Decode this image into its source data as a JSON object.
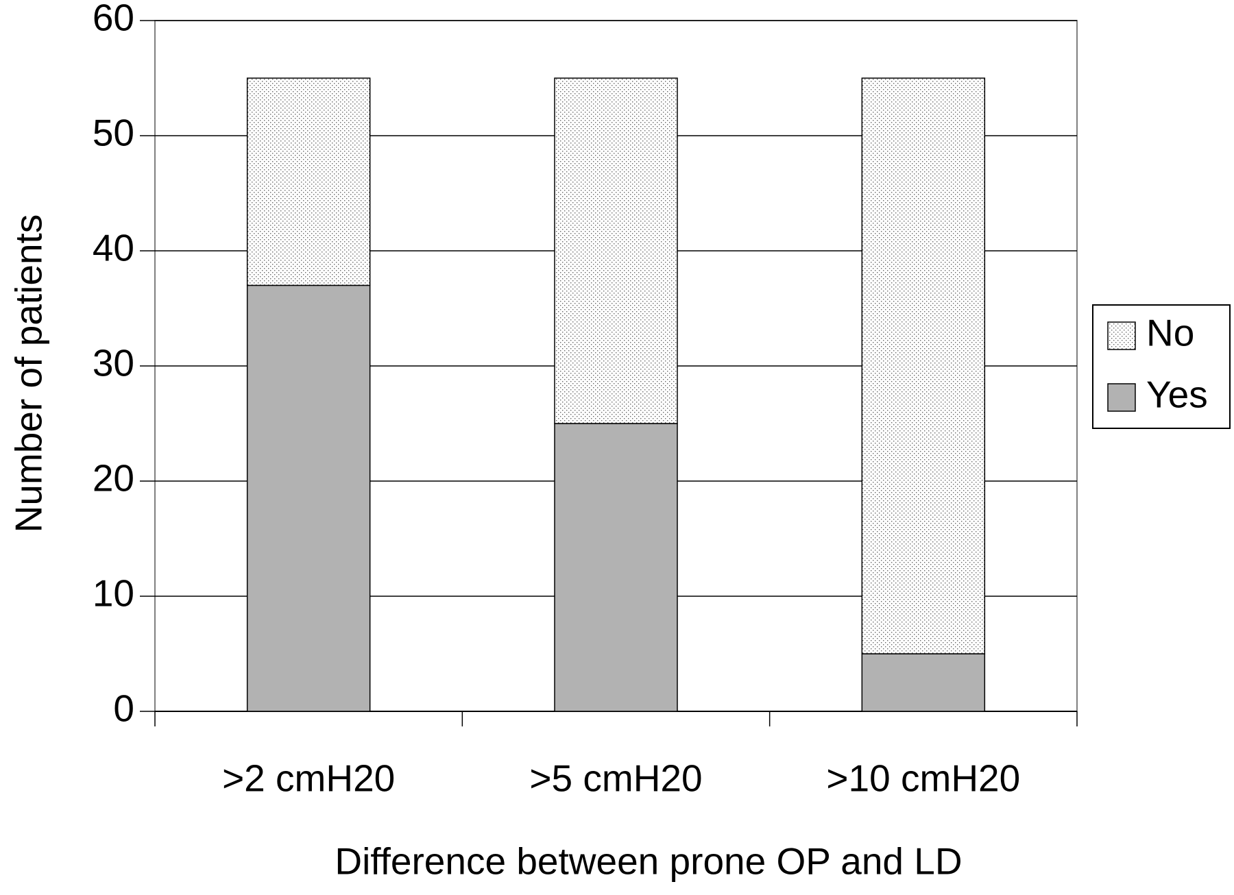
{
  "chart_data": {
    "type": "stacked-bar",
    "x_label": "Difference between prone OP and LD",
    "y_label": "Number of patients",
    "categories": [
      ">2 cmH20",
      ">5 cmH20",
      ">10 cmH20"
    ],
    "series": [
      {
        "name": "Yes",
        "color": "#b2b2b2",
        "values": [
          37,
          25,
          5
        ]
      },
      {
        "name": "No",
        "color": "#ffffff",
        "values": [
          18,
          30,
          50
        ]
      }
    ],
    "ylim": [
      0,
      60
    ],
    "yticks": [
      0,
      10,
      20,
      30,
      40,
      50,
      60
    ],
    "grid": true,
    "legend": "right"
  }
}
